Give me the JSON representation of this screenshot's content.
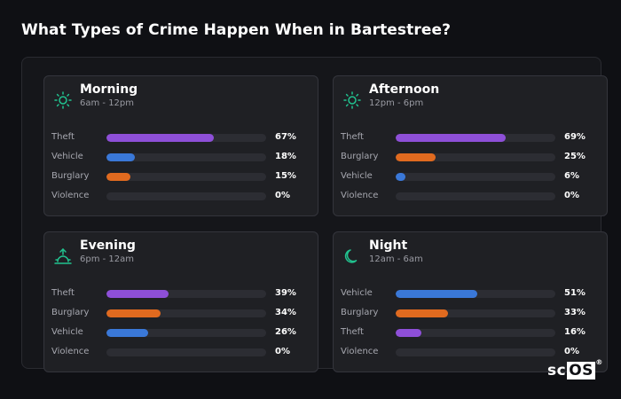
{
  "title": "What Types of Crime Happen When in Bartestree?",
  "colors": {
    "theft": "#8e4fd8",
    "vehicle": "#3a78d8",
    "burglary": "#e06a1f",
    "violence": "#8e4fd8",
    "icon": "#21c28f"
  },
  "cards": [
    {
      "name": "Morning",
      "time": "6am - 12pm",
      "icon": "sun-icon",
      "rows": [
        {
          "label": "Theft",
          "value": 67,
          "pct": "67%",
          "color": "#8e4fd8"
        },
        {
          "label": "Vehicle",
          "value": 18,
          "pct": "18%",
          "color": "#3a78d8"
        },
        {
          "label": "Burglary",
          "value": 15,
          "pct": "15%",
          "color": "#e06a1f"
        },
        {
          "label": "Violence",
          "value": 0,
          "pct": "0%",
          "color": "#8e4fd8"
        }
      ]
    },
    {
      "name": "Afternoon",
      "time": "12pm - 6pm",
      "icon": "sun-icon",
      "rows": [
        {
          "label": "Theft",
          "value": 69,
          "pct": "69%",
          "color": "#8e4fd8"
        },
        {
          "label": "Burglary",
          "value": 25,
          "pct": "25%",
          "color": "#e06a1f"
        },
        {
          "label": "Vehicle",
          "value": 6,
          "pct": "6%",
          "color": "#3a78d8"
        },
        {
          "label": "Violence",
          "value": 0,
          "pct": "0%",
          "color": "#8e4fd8"
        }
      ]
    },
    {
      "name": "Evening",
      "time": "6pm - 12am",
      "icon": "sunset-icon",
      "rows": [
        {
          "label": "Theft",
          "value": 39,
          "pct": "39%",
          "color": "#8e4fd8"
        },
        {
          "label": "Burglary",
          "value": 34,
          "pct": "34%",
          "color": "#e06a1f"
        },
        {
          "label": "Vehicle",
          "value": 26,
          "pct": "26%",
          "color": "#3a78d8"
        },
        {
          "label": "Violence",
          "value": 0,
          "pct": "0%",
          "color": "#8e4fd8"
        }
      ]
    },
    {
      "name": "Night",
      "time": "12am - 6am",
      "icon": "moon-icon",
      "rows": [
        {
          "label": "Vehicle",
          "value": 51,
          "pct": "51%",
          "color": "#3a78d8"
        },
        {
          "label": "Burglary",
          "value": 33,
          "pct": "33%",
          "color": "#e06a1f"
        },
        {
          "label": "Theft",
          "value": 16,
          "pct": "16%",
          "color": "#8e4fd8"
        },
        {
          "label": "Violence",
          "value": 0,
          "pct": "0%",
          "color": "#8e4fd8"
        }
      ]
    }
  ],
  "brand": {
    "text": "scOS",
    "mark": "sc",
    "mark2": "OS",
    "reg": "®"
  }
}
